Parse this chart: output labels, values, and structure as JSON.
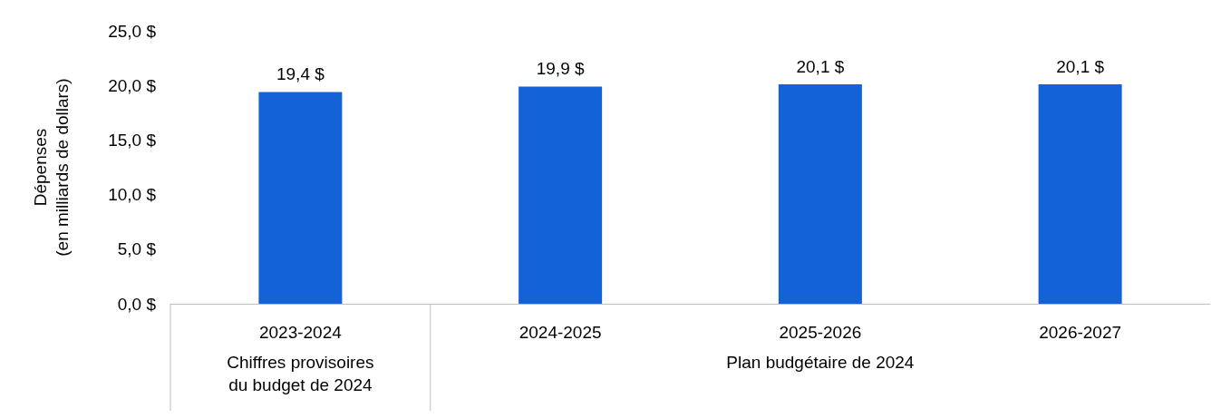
{
  "chart_data": {
    "type": "bar",
    "ylabel": "Dépenses\n(en milliards de dollars)",
    "categories": [
      "2023-2024",
      "2024-2025",
      "2025-2026",
      "2026-2027"
    ],
    "values": [
      19.4,
      19.9,
      20.1,
      20.1
    ],
    "color": "#1462d8",
    "value_labels": [
      "19,4 $",
      "19,9 $",
      "20,1 $",
      "20,1 $"
    ],
    "ylim": [
      0,
      25
    ],
    "yticks": [
      {
        "value": 0,
        "label": "0,0 $"
      },
      {
        "value": 5,
        "label": "5,0 $"
      },
      {
        "value": 10,
        "label": "10,0 $"
      },
      {
        "value": 15,
        "label": "15,0 $"
      },
      {
        "value": 20,
        "label": "20,0 $"
      },
      {
        "value": 25,
        "label": "25,0 $"
      }
    ],
    "annotations": [
      "Chiffres provisoires\ndu budget de 2024",
      "Plan budgétaire de 2024"
    ],
    "grid": false
  }
}
